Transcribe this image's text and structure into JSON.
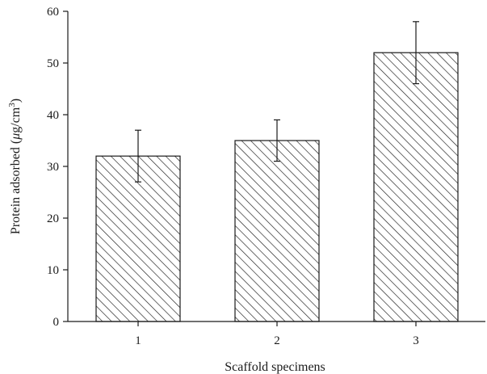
{
  "chart_data": {
    "type": "bar",
    "categories": [
      "1",
      "2",
      "3"
    ],
    "values": [
      32,
      35,
      52
    ],
    "error": [
      5,
      4,
      6
    ],
    "xlabel": "Scaffold specimens",
    "ylabel_parts": {
      "prefix": "Protein adsorbed (",
      "mu": "μ",
      "unit": "g/cm",
      "sup": "3",
      "suffix": ")"
    },
    "ylim": [
      0,
      60
    ],
    "yticks": [
      0,
      10,
      20,
      30,
      40,
      50,
      60
    ],
    "bar_fill": "hatch-diagonal",
    "grid": false,
    "legend": "none"
  }
}
